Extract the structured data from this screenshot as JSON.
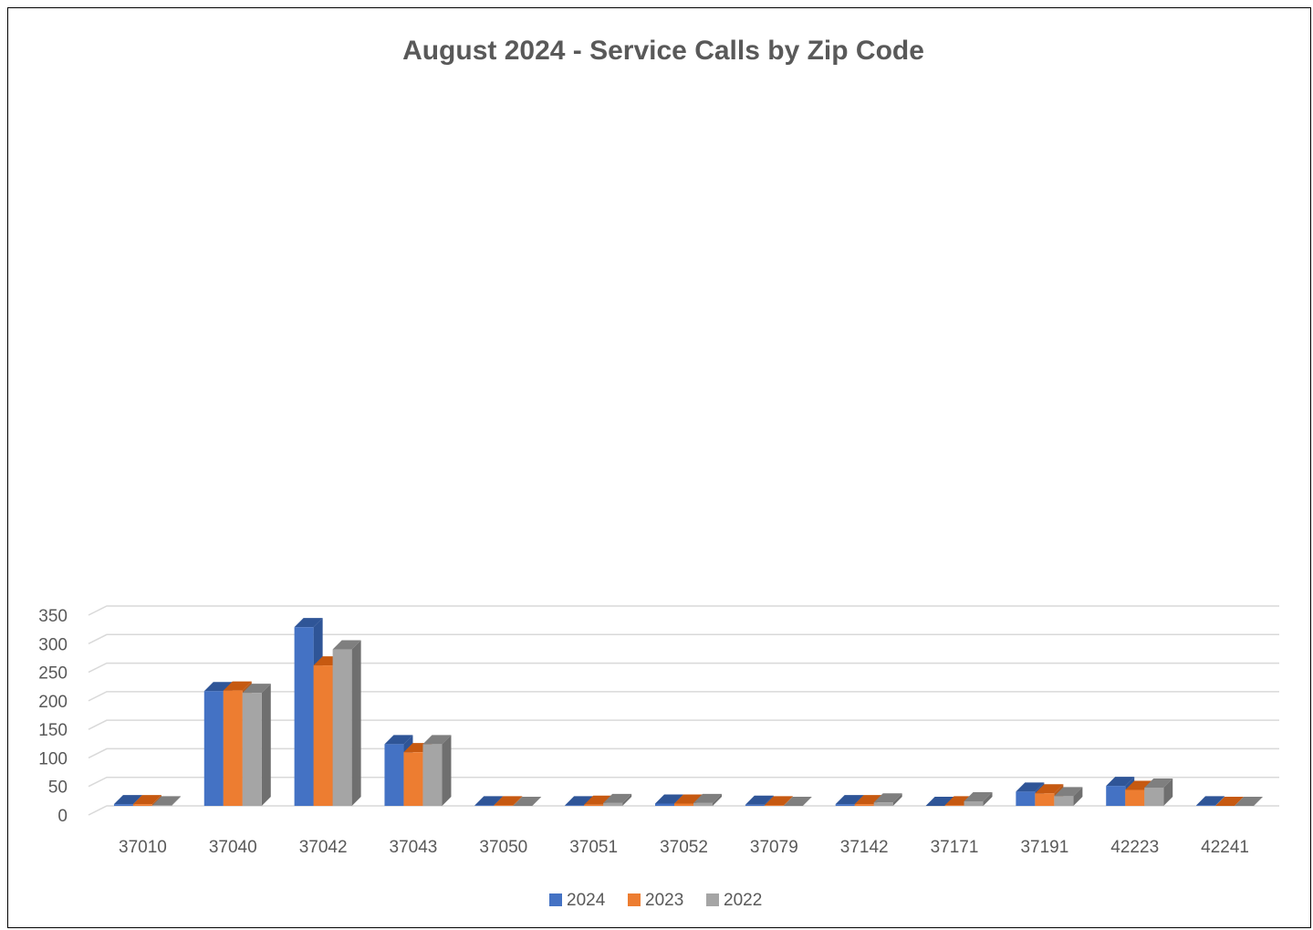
{
  "chart_data": {
    "type": "bar",
    "title": "August 2024 - Service Calls by Zip Code",
    "xlabel": "",
    "ylabel": "",
    "ylim": [
      0,
      350
    ],
    "y_ticks": [
      0,
      50,
      100,
      150,
      200,
      250,
      300,
      350
    ],
    "grid": true,
    "legend_position": "bottom",
    "categories": [
      "37010",
      "37040",
      "37042",
      "37043",
      "37050",
      "37051",
      "37052",
      "37079",
      "37142",
      "37171",
      "37191",
      "42223",
      "42241"
    ],
    "series": [
      {
        "name": "2024",
        "color": "#4472C4",
        "side_color": "#2F5597",
        "top_color": "#2F5597",
        "values": [
          3,
          201,
          313,
          108,
          1,
          1,
          4,
          2,
          3,
          0,
          25,
          35,
          1
        ]
      },
      {
        "name": "2023",
        "color": "#ED7D31",
        "side_color": "#B55A1C",
        "top_color": "#C65911",
        "values": [
          3,
          202,
          246,
          94,
          1,
          2,
          4,
          1,
          3,
          1,
          22,
          28,
          0
        ]
      },
      {
        "name": "2022",
        "color": "#A5A5A5",
        "side_color": "#6F6F6F",
        "top_color": "#7F7F7F",
        "values": [
          1,
          198,
          274,
          108,
          0,
          5,
          5,
          0,
          6,
          8,
          17,
          32,
          0
        ]
      }
    ]
  }
}
